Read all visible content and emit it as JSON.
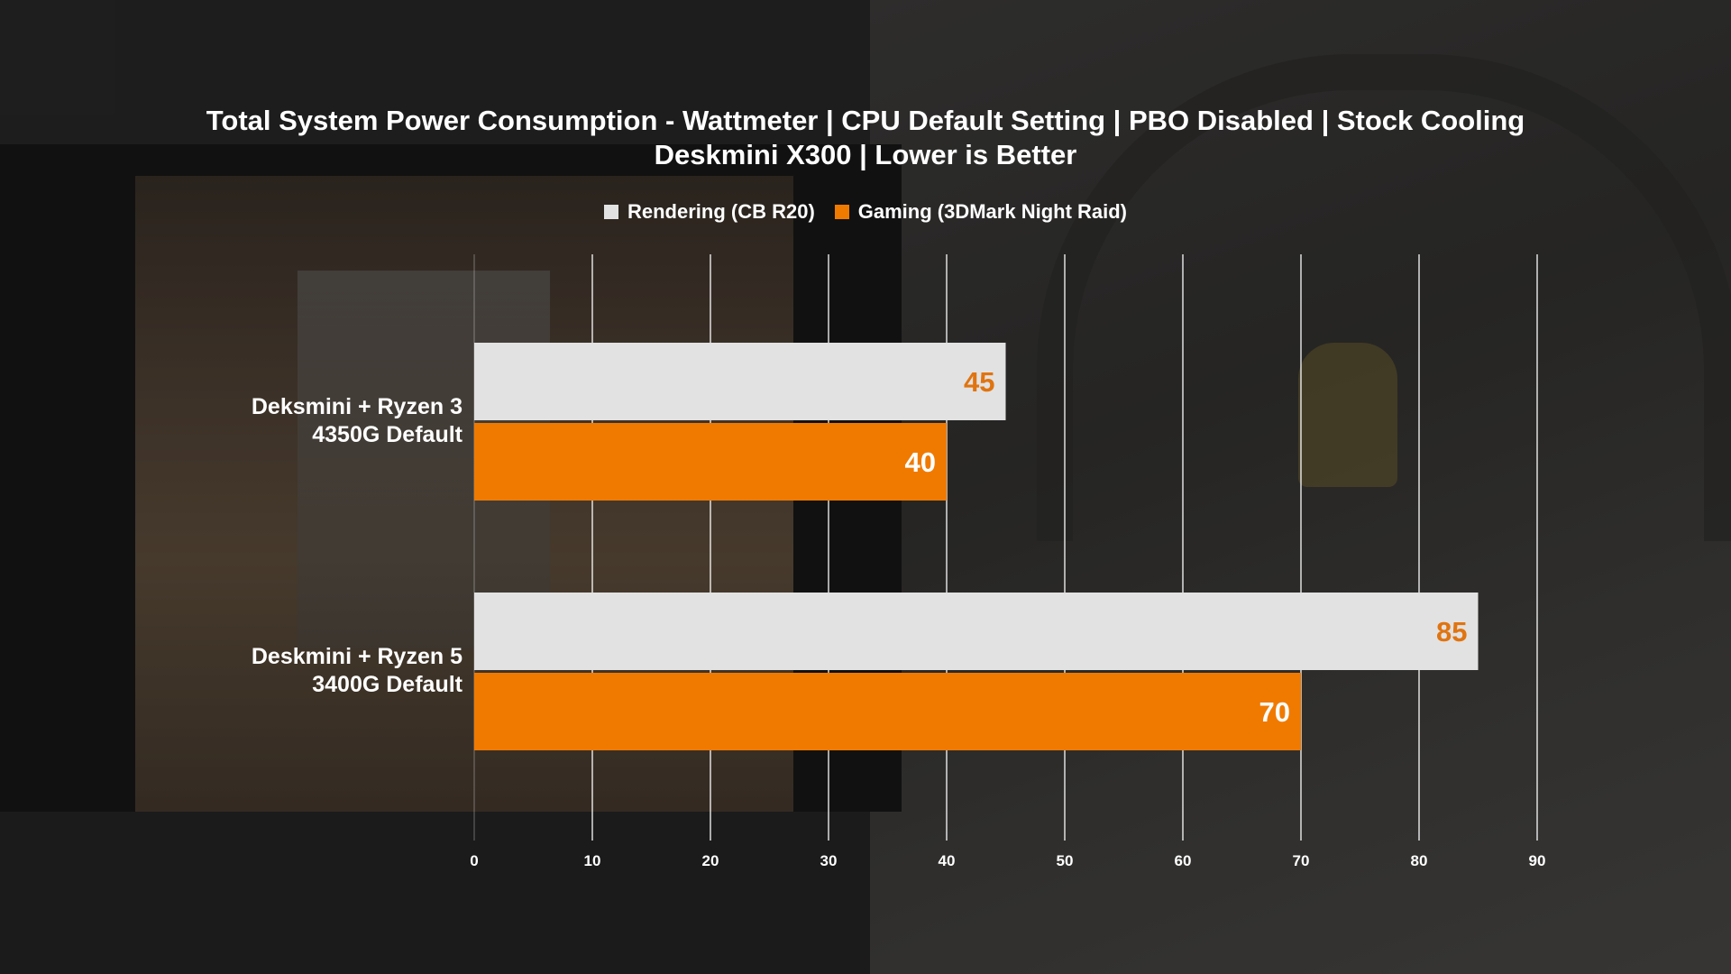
{
  "title_line1": "Total System Power Consumption - Wattmeter | CPU Default Setting | PBO Disabled | Stock Cooling",
  "title_line2": "Deskmini X300 | Lower is Better",
  "colors": {
    "rendering": "#e2e2e2",
    "gaming": "#f07a00",
    "rendering_label": "#e07410",
    "gaming_label": "#ffffff",
    "grid": "#ffffff"
  },
  "chart_data": {
    "type": "bar",
    "orientation": "horizontal",
    "title": "Total System Power Consumption - Wattmeter | CPU Default Setting | PBO Disabled | Stock Cooling / Deskmini X300 | Lower is Better",
    "categories": [
      [
        "Deksmini + Ryzen 3",
        "4350G Default"
      ],
      [
        "Deskmini + Ryzen 5",
        "3400G Default"
      ]
    ],
    "series": [
      {
        "name": "Rendering (CB R20)",
        "values": [
          45,
          85
        ]
      },
      {
        "name": "Gaming (3DMark Night Raid)",
        "values": [
          40,
          70
        ]
      }
    ],
    "xlim": [
      0,
      90
    ],
    "xticks": [
      "0",
      "10",
      "20",
      "30",
      "40",
      "50",
      "60",
      "70",
      "80",
      "90"
    ],
    "grid": true,
    "legend_position": "top"
  }
}
